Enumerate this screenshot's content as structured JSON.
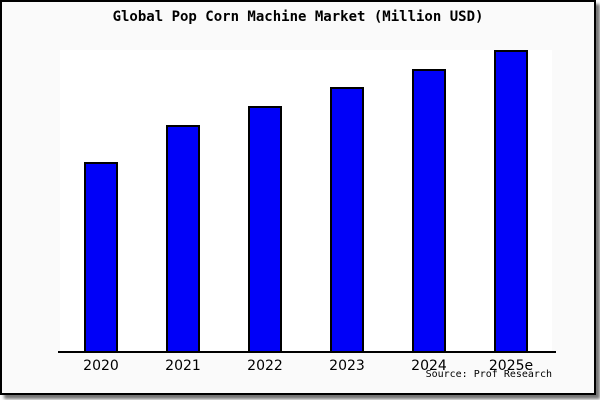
{
  "chart_data": {
    "type": "bar",
    "title": "Global Pop Corn Machine Market (Million USD)",
    "categories": [
      "2020",
      "2021",
      "2022",
      "2023",
      "2024",
      "2025e"
    ],
    "values": [
      62.8,
      75.1,
      81.4,
      87.7,
      93.7,
      100
    ],
    "xlabel": "",
    "ylabel": "",
    "ylim": [
      0,
      100
    ],
    "value_note": "y-axis has no ticks or labels; values are relative bar heights with tallest bar = 100",
    "grid": false,
    "legend_position": "none",
    "bar_color": "#0000f8",
    "bar_border_color": "#000000"
  },
  "source": {
    "text": "Source: Prof Research"
  },
  "colors": {
    "frame_background": "#fafafa",
    "plot_background": "#ffffff",
    "frame_border": "#000000",
    "text": "#000000"
  }
}
